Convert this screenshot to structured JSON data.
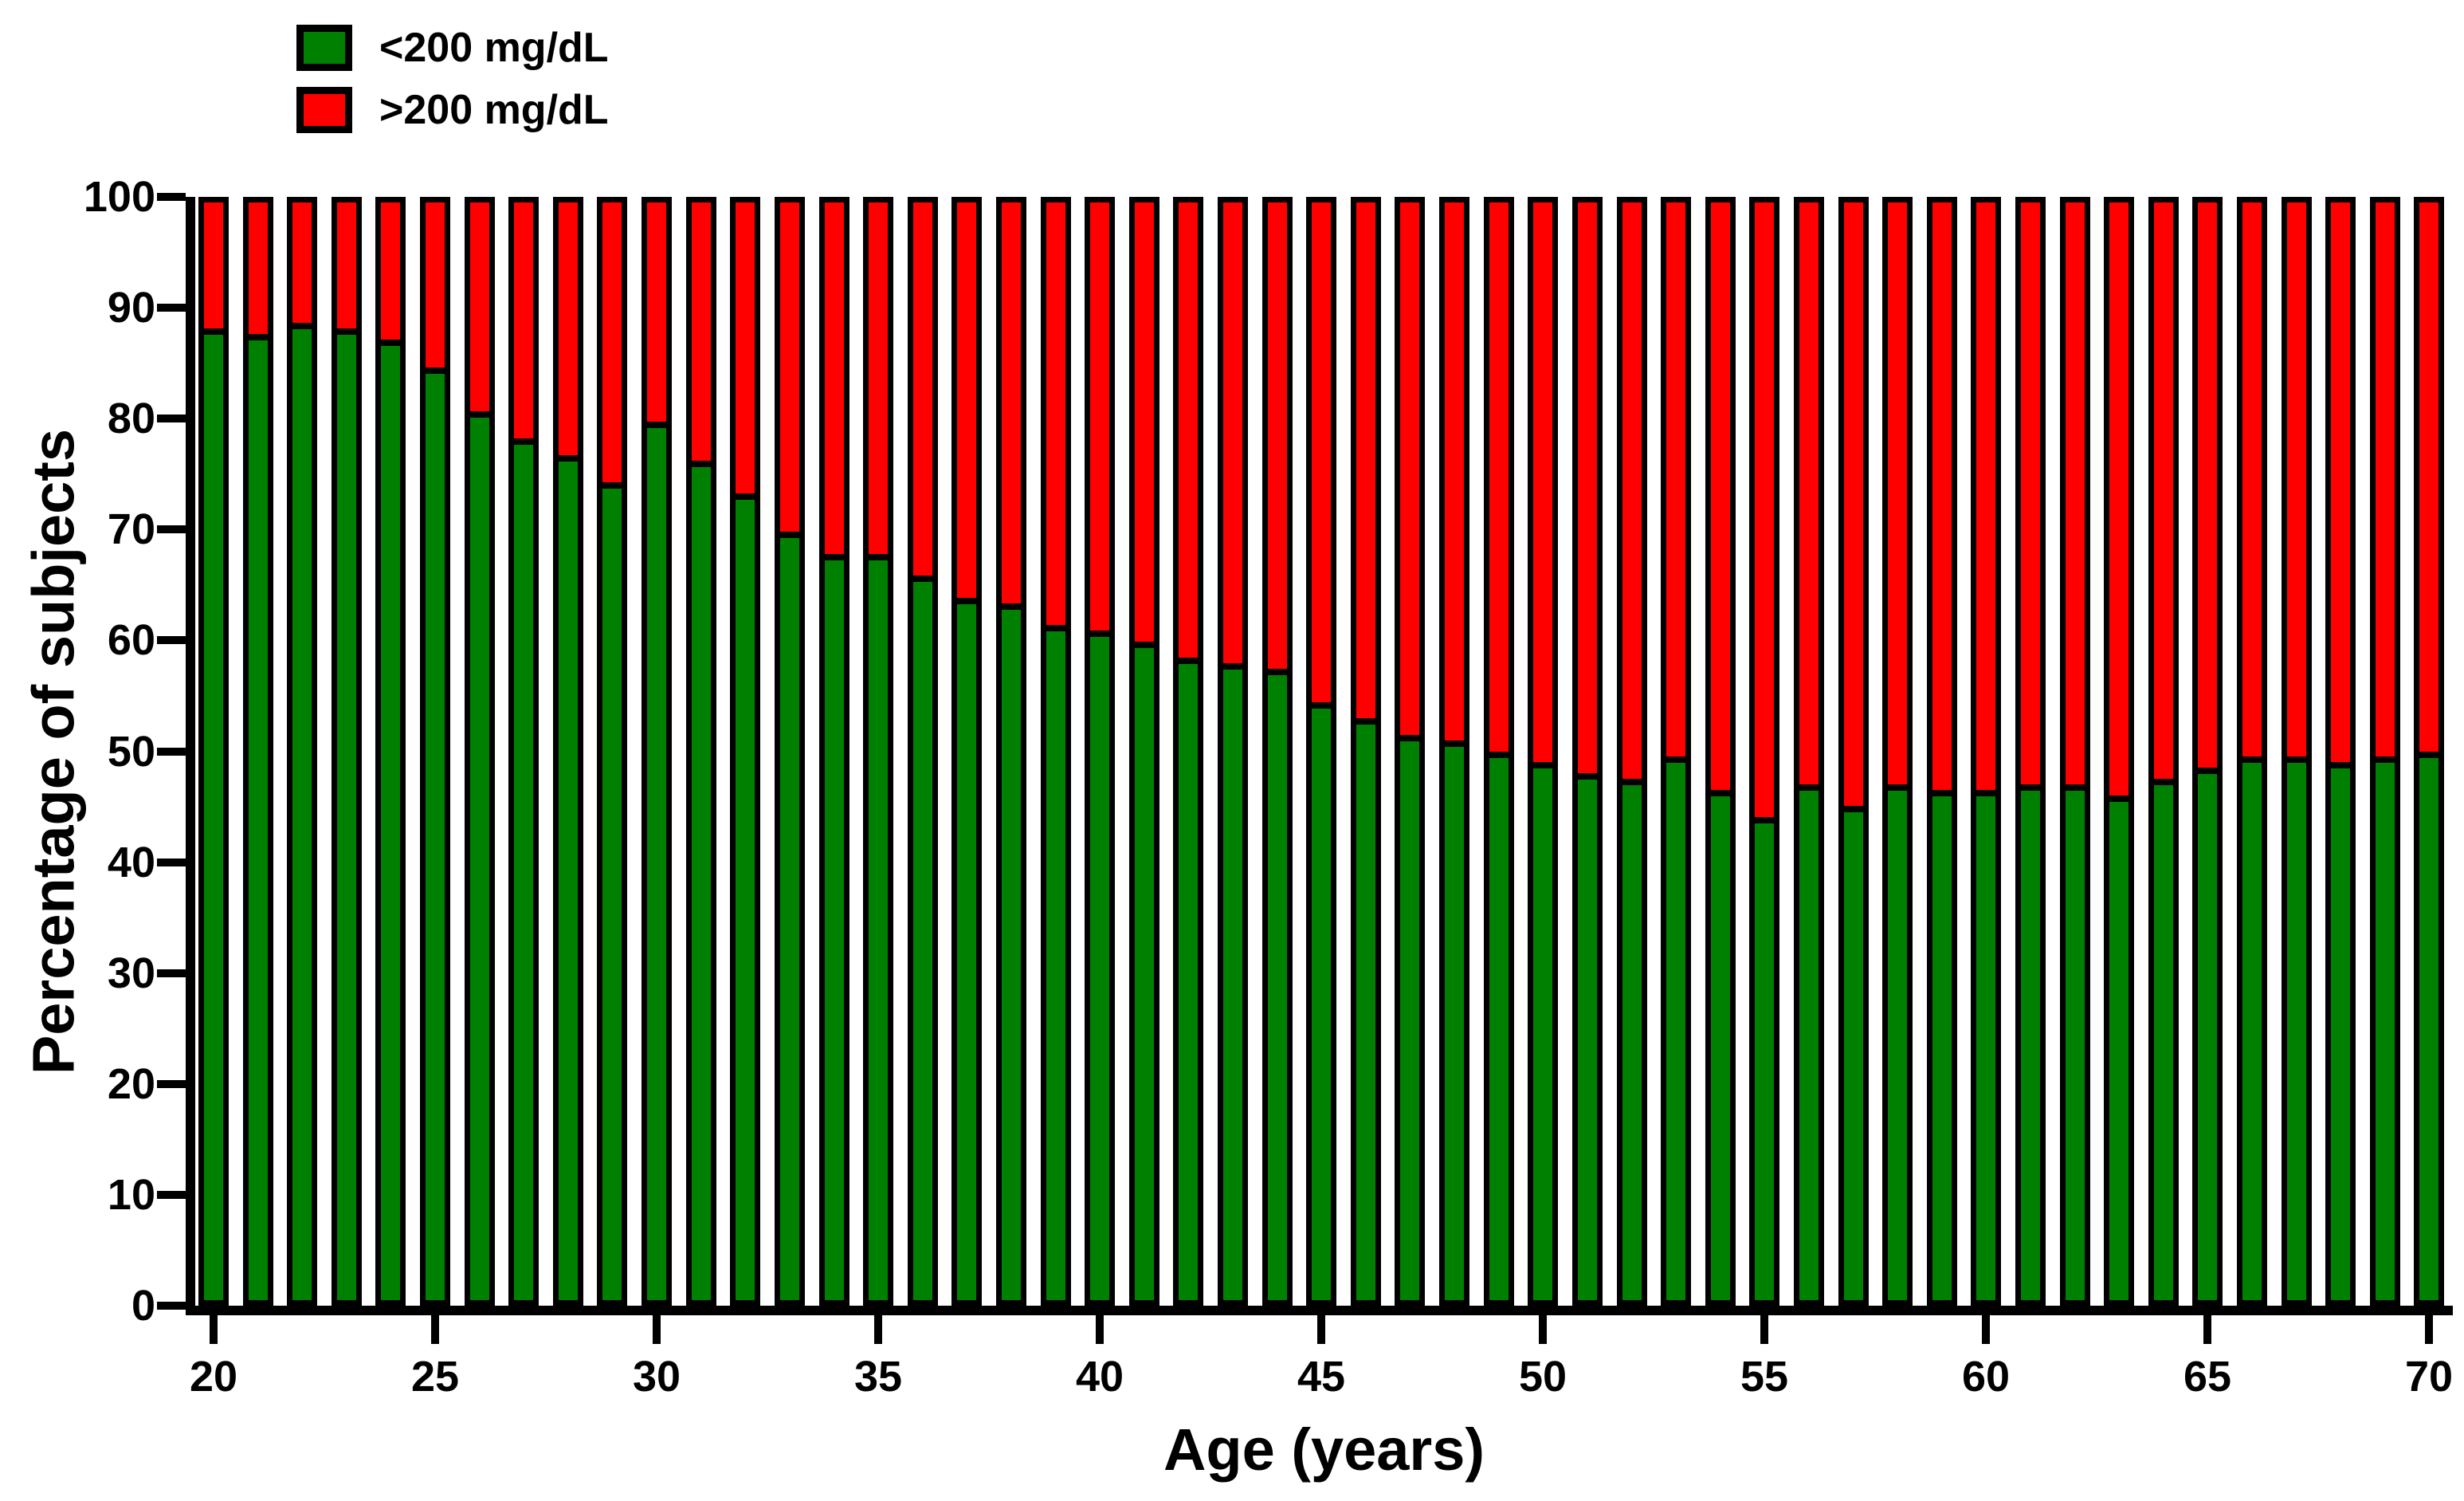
{
  "figure": {
    "background": "#ffffff",
    "text_color": "#000000",
    "axis_color": "#000000"
  },
  "legend": {
    "items": [
      {
        "label": "<200 mg/dL",
        "color": "#008000"
      },
      {
        "label": ">200 mg/dL",
        "color": "#ff0000"
      }
    ]
  },
  "axes": {
    "y": {
      "title": "Percentage of subjects",
      "min": 0,
      "max": 100,
      "ticks": [
        0,
        10,
        20,
        30,
        40,
        50,
        60,
        70,
        80,
        90,
        100
      ]
    },
    "x": {
      "title": "Age (years)",
      "ticks": [
        20,
        25,
        30,
        35,
        40,
        45,
        50,
        55,
        60,
        65,
        70
      ]
    }
  },
  "chart_data": {
    "type": "bar",
    "stacked": true,
    "grid": false,
    "legend_position": "top-left",
    "title": "",
    "xlabel": "Age (years)",
    "ylabel": "Percentage of subjects",
    "ylim": [
      0,
      100
    ],
    "x": [
      20,
      21,
      22,
      23,
      24,
      25,
      26,
      27,
      28,
      29,
      30,
      31,
      32,
      33,
      34,
      35,
      36,
      37,
      38,
      39,
      40,
      41,
      42,
      43,
      44,
      45,
      46,
      47,
      48,
      49,
      50,
      51,
      52,
      53,
      54,
      55,
      56,
      57,
      58,
      59,
      60,
      61,
      62,
      63,
      64,
      65,
      66,
      67,
      68,
      69,
      70
    ],
    "series": [
      {
        "name": "<200 mg/dL",
        "color": "#008000",
        "values": [
          88.5,
          88,
          89,
          88.5,
          87.5,
          85,
          81,
          78.5,
          77,
          74.5,
          80,
          76.5,
          73.5,
          70,
          68,
          68,
          66,
          64,
          63.5,
          61.5,
          61,
          60,
          58.5,
          58,
          57.5,
          54.5,
          53,
          51.5,
          51,
          50,
          49,
          48,
          47.5,
          49.5,
          46.5,
          44,
          47,
          45,
          47,
          46.5,
          46.5,
          47,
          47,
          46,
          47.5,
          48.5,
          49.5,
          49.5,
          49,
          49.5,
          50
        ]
      },
      {
        "name": ">200 mg/dL",
        "color": "#ff0000",
        "values": [
          11.5,
          12,
          11,
          11.5,
          12.5,
          15,
          19,
          21.5,
          23,
          25.5,
          20,
          23.5,
          26.5,
          30,
          32,
          32,
          34,
          36,
          36.5,
          38.5,
          39,
          40,
          41.5,
          42,
          42.5,
          45.5,
          47,
          48.5,
          49,
          50,
          51,
          52,
          52.5,
          50.5,
          53.5,
          56,
          53,
          55,
          53,
          53.5,
          53.5,
          53,
          53,
          54,
          52.5,
          51.5,
          50.5,
          50.5,
          51,
          50.5,
          50
        ]
      }
    ]
  }
}
